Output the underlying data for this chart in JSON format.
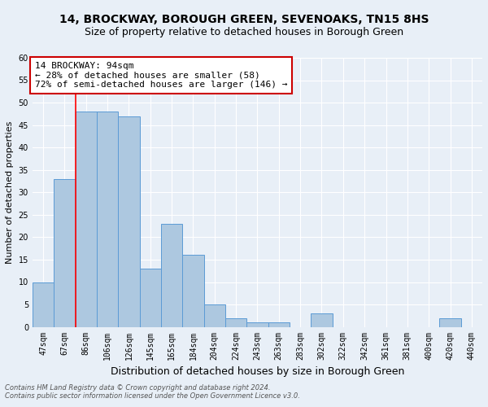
{
  "title": "14, BROCKWAY, BOROUGH GREEN, SEVENOAKS, TN15 8HS",
  "subtitle": "Size of property relative to detached houses in Borough Green",
  "xlabel": "Distribution of detached houses by size in Borough Green",
  "ylabel": "Number of detached properties",
  "footnote1": "Contains HM Land Registry data © Crown copyright and database right 2024.",
  "footnote2": "Contains public sector information licensed under the Open Government Licence v3.0.",
  "bins": [
    "47sqm",
    "67sqm",
    "86sqm",
    "106sqm",
    "126sqm",
    "145sqm",
    "165sqm",
    "184sqm",
    "204sqm",
    "224sqm",
    "243sqm",
    "263sqm",
    "283sqm",
    "302sqm",
    "322sqm",
    "342sqm",
    "361sqm",
    "381sqm",
    "400sqm",
    "420sqm",
    "440sqm"
  ],
  "values": [
    10,
    33,
    48,
    48,
    47,
    13,
    23,
    16,
    5,
    2,
    1,
    1,
    0,
    3,
    0,
    0,
    0,
    0,
    0,
    2,
    0
  ],
  "bar_color": "#adc8e0",
  "bar_edge_color": "#5b9bd5",
  "red_line_bin_index": 2,
  "annotation_title": "14 BROCKWAY: 94sqm",
  "annotation_line1": "← 28% of detached houses are smaller (58)",
  "annotation_line2": "72% of semi-detached houses are larger (146) →",
  "annotation_box_color": "#ffffff",
  "annotation_box_edge_color": "#cc0000",
  "ylim": [
    0,
    60
  ],
  "yticks": [
    0,
    5,
    10,
    15,
    20,
    25,
    30,
    35,
    40,
    45,
    50,
    55,
    60
  ],
  "background_color": "#e8eff7",
  "grid_color": "#ffffff",
  "title_fontsize": 10,
  "subtitle_fontsize": 9,
  "ylabel_fontsize": 8,
  "xlabel_fontsize": 9,
  "tick_fontsize": 7,
  "annot_fontsize": 8,
  "footnote_fontsize": 6
}
